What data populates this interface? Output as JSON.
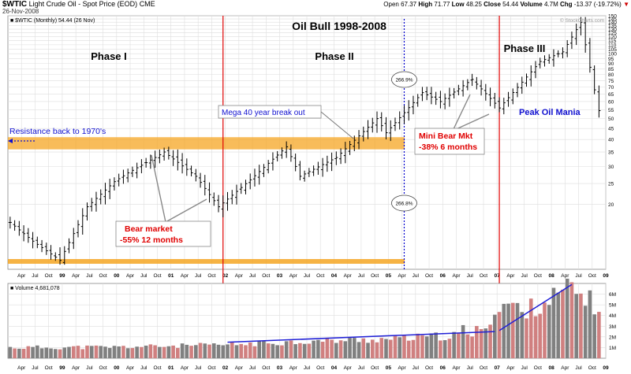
{
  "header": {
    "symbol": "$WTIC",
    "name": "Light Crude Oil - Spot Price (EOD)",
    "exchange": "CME",
    "date": "26-Nov-2008",
    "open_label": "Open",
    "open": "67.37",
    "high_label": "High",
    "high": "71.77",
    "low_label": "Low",
    "low": "48.25",
    "close_label": "Close",
    "close": "54.44",
    "volume_label": "Volume",
    "volume": "4.7M",
    "chg_label": "Chg",
    "chg": "-13.37 (-19.72%)",
    "chg_arrow": "▼",
    "copyright": "© StockCharts.com"
  },
  "colors": {
    "price_bar": "#000000",
    "phase_line": "#e00000",
    "dotted_line": "#0000cc",
    "resistance_band": "#f5a623",
    "volume_up": "#808080",
    "volume_down": "#d08080",
    "trend_line": "#1f1fd6",
    "annotation_red": "#e00000",
    "annotation_blue": "#1010d0",
    "grid": "#dedede"
  },
  "chart_data": [
    {
      "type": "ohlc",
      "title": "Oil Bull 1998-2008",
      "legend": "$WTIC (Monthly) 54.44 (26 Nov)",
      "ylim": [
        10,
        150
      ],
      "yscale": "log",
      "y_ticks": [
        20,
        25,
        30,
        35,
        40,
        45,
        50,
        55,
        60,
        65,
        70,
        75,
        80,
        85,
        90,
        95,
        100,
        105,
        110,
        115,
        120,
        125,
        130,
        135,
        140,
        145,
        150
      ],
      "x_ticks": [
        {
          "label": "Apr",
          "t": 1998.25
        },
        {
          "label": "Jul",
          "t": 1998.5
        },
        {
          "label": "Oct",
          "t": 1998.75
        },
        {
          "label": "99",
          "t": 1999.0
        },
        {
          "label": "Apr",
          "t": 1999.25
        },
        {
          "label": "Jul",
          "t": 1999.5
        },
        {
          "label": "Oct",
          "t": 1999.75
        },
        {
          "label": "00",
          "t": 2000.0
        },
        {
          "label": "Apr",
          "t": 2000.25
        },
        {
          "label": "Jul",
          "t": 2000.5
        },
        {
          "label": "Oct",
          "t": 2000.75
        },
        {
          "label": "01",
          "t": 2001.0
        },
        {
          "label": "Apr",
          "t": 2001.25
        },
        {
          "label": "Jul",
          "t": 2001.5
        },
        {
          "label": "Oct",
          "t": 2001.75
        },
        {
          "label": "02",
          "t": 2002.0
        },
        {
          "label": "Apr",
          "t": 2002.25
        },
        {
          "label": "Jul",
          "t": 2002.5
        },
        {
          "label": "Oct",
          "t": 2002.75
        },
        {
          "label": "03",
          "t": 2003.0
        },
        {
          "label": "Apr",
          "t": 2003.25
        },
        {
          "label": "Jul",
          "t": 2003.5
        },
        {
          "label": "Oct",
          "t": 2003.75
        },
        {
          "label": "04",
          "t": 2004.0
        },
        {
          "label": "Apr",
          "t": 2004.25
        },
        {
          "label": "Jul",
          "t": 2004.5
        },
        {
          "label": "Oct",
          "t": 2004.75
        },
        {
          "label": "05",
          "t": 2005.0
        },
        {
          "label": "Apr",
          "t": 2005.25
        },
        {
          "label": "Jul",
          "t": 2005.5
        },
        {
          "label": "Oct",
          "t": 2005.75
        },
        {
          "label": "06",
          "t": 2006.0
        },
        {
          "label": "Apr",
          "t": 2006.25
        },
        {
          "label": "Jul",
          "t": 2006.5
        },
        {
          "label": "Oct",
          "t": 2006.75
        },
        {
          "label": "07",
          "t": 2007.0
        },
        {
          "label": "Apr",
          "t": 2007.25
        },
        {
          "label": "Jul",
          "t": 2007.5
        },
        {
          "label": "Oct",
          "t": 2007.75
        },
        {
          "label": "08",
          "t": 2008.0
        },
        {
          "label": "Apr",
          "t": 2008.25
        },
        {
          "label": "Jul",
          "t": 2008.5
        },
        {
          "label": "Oct",
          "t": 2008.75
        },
        {
          "label": "09",
          "t": 2009.0
        }
      ],
      "bold_x_labels": [
        "99",
        "00",
        "01",
        "02",
        "03",
        "04",
        "05",
        "06",
        "07",
        "08",
        "09"
      ],
      "key_points": [
        {
          "date": "1998-01",
          "close": 16.5
        },
        {
          "date": "1998-06",
          "close": 13.5
        },
        {
          "date": "1998-12",
          "close": 11.0
        },
        {
          "date": "1999-06",
          "close": 19.5
        },
        {
          "date": "1999-12",
          "close": 25.5
        },
        {
          "date": "2000-03",
          "close": 28.0
        },
        {
          "date": "2000-09",
          "close": 33.0
        },
        {
          "date": "2000-11",
          "close": 35.0
        },
        {
          "date": "2001-06",
          "close": 27.0
        },
        {
          "date": "2001-11",
          "close": 19.5
        },
        {
          "date": "2002-06",
          "close": 26.0
        },
        {
          "date": "2003-02",
          "close": 37.0
        },
        {
          "date": "2003-05",
          "close": 27.0
        },
        {
          "date": "2004-01",
          "close": 33.0
        },
        {
          "date": "2004-10",
          "close": 50.0
        },
        {
          "date": "2004-12",
          "close": 43.0
        },
        {
          "date": "2005-08",
          "close": 66.0
        },
        {
          "date": "2005-12",
          "close": 60.0
        },
        {
          "date": "2006-07",
          "close": 76.0
        },
        {
          "date": "2007-01",
          "close": 56.0
        },
        {
          "date": "2007-10",
          "close": 92.0
        },
        {
          "date": "2008-03",
          "close": 102.0
        },
        {
          "date": "2008-07",
          "close": 140.0
        },
        {
          "date": "2008-10",
          "close": 68.0
        },
        {
          "date": "2008-11",
          "close": 54.44
        }
      ],
      "resistance_band": {
        "low": 36,
        "high": 41
      },
      "support_band": {
        "low": 11,
        "high": 11.3
      },
      "phase_lines": [
        "2001-12",
        "2007-01"
      ],
      "dotted_line": "2005-04",
      "annotations": {
        "phase1": "Phase I",
        "phase2": "Phase II",
        "phase3": "Phase III",
        "resistance": "Resistance back to 1970's",
        "mega_break": "Mega 40 year break out",
        "bear_market_l1": "Bear market",
        "bear_market_l2": "-55% 12 months",
        "mini_bear_l1": "Mini Bear Mkt",
        "mini_bear_l2": "-38%  6 months",
        "peak_oil": "Peak Oil Mania",
        "pct_top": "266.9%",
        "pct_bottom": "266.8%"
      }
    },
    {
      "type": "bar",
      "title": "Volume 4,681,078",
      "ylim": [
        0,
        7000000
      ],
      "y_ticks": [
        {
          "v": 1000000,
          "label": "1M"
        },
        {
          "v": 2000000,
          "label": "2M"
        },
        {
          "v": 3000000,
          "label": "3M"
        },
        {
          "v": 4000000,
          "label": "4M"
        },
        {
          "v": 5000000,
          "label": "5M"
        },
        {
          "v": 6000000,
          "label": "6M"
        }
      ],
      "key_points": [
        {
          "date": "1998-01",
          "volume": 1000000
        },
        {
          "date": "2000-01",
          "volume": 1050000
        },
        {
          "date": "2002-01",
          "volume": 1250000
        },
        {
          "date": "2003-01",
          "volume": 1500000
        },
        {
          "date": "2005-01",
          "volume": 1800000
        },
        {
          "date": "2006-07",
          "volume": 2200000
        },
        {
          "date": "2007-03",
          "volume": 5200000
        },
        {
          "date": "2007-06",
          "volume": 4300000
        },
        {
          "date": "2008-05",
          "volume": 6500000
        },
        {
          "date": "2008-11",
          "volume": 4700000
        }
      ],
      "trend_lines": [
        {
          "from": {
            "date": "2002-01",
            "volume": 1500000
          },
          "to": {
            "date": "2006-12",
            "volume": 2500000
          }
        },
        {
          "from": {
            "date": "2007-01",
            "volume": 2600000
          },
          "to": {
            "date": "2008-05",
            "volume": 6900000
          }
        }
      ]
    }
  ]
}
